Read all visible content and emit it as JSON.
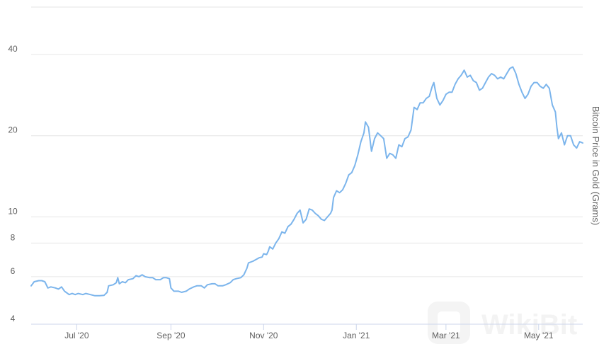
{
  "chart_data": {
    "type": "line",
    "title": "",
    "xlabel": "",
    "ylabel": "Bitcoin Price in Gold (Grams)",
    "y_scale": "log",
    "ylim": [
      4,
      60
    ],
    "y_ticks": [
      {
        "value": 4,
        "label": "4"
      },
      {
        "value": 6,
        "label": "6"
      },
      {
        "value": 8,
        "label": "8"
      },
      {
        "value": 10,
        "label": "10"
      },
      {
        "value": 20,
        "label": "20"
      },
      {
        "value": 40,
        "label": "40"
      }
    ],
    "x_ticks": [
      {
        "date": "2020-07-01",
        "label": "Jul '20"
      },
      {
        "date": "2020-09-01",
        "label": "Sep '20"
      },
      {
        "date": "2020-11-01",
        "label": "Nov '20"
      },
      {
        "date": "2021-01-01",
        "label": "Jan '21"
      },
      {
        "date": "2021-03-01",
        "label": "Mar '21"
      },
      {
        "date": "2021-05-01",
        "label": "May '21"
      }
    ],
    "xlim": [
      "2020-06-01",
      "2021-05-30"
    ],
    "grid": true,
    "legend": "none",
    "line_color": "#7cb5ec",
    "series": [
      {
        "points": [
          [
            "2020-06-01",
            5.55
          ],
          [
            "2020-06-03",
            5.75
          ],
          [
            "2020-06-06",
            5.8
          ],
          [
            "2020-06-08",
            5.8
          ],
          [
            "2020-06-10",
            5.75
          ],
          [
            "2020-06-12",
            5.45
          ],
          [
            "2020-06-14",
            5.5
          ],
          [
            "2020-06-17",
            5.45
          ],
          [
            "2020-06-19",
            5.4
          ],
          [
            "2020-06-21",
            5.5
          ],
          [
            "2020-06-23",
            5.3
          ],
          [
            "2020-06-26",
            5.15
          ],
          [
            "2020-06-28",
            5.2
          ],
          [
            "2020-06-30",
            5.15
          ],
          [
            "2020-07-02",
            5.2
          ],
          [
            "2020-07-05",
            5.15
          ],
          [
            "2020-07-07",
            5.2
          ],
          [
            "2020-07-10",
            5.15
          ],
          [
            "2020-07-13",
            5.1
          ],
          [
            "2020-07-16",
            5.1
          ],
          [
            "2020-07-19",
            5.12
          ],
          [
            "2020-07-21",
            5.25
          ],
          [
            "2020-07-22",
            5.55
          ],
          [
            "2020-07-25",
            5.6
          ],
          [
            "2020-07-27",
            5.7
          ],
          [
            "2020-07-28",
            5.95
          ],
          [
            "2020-07-29",
            5.65
          ],
          [
            "2020-07-31",
            5.75
          ],
          [
            "2020-08-02",
            5.7
          ],
          [
            "2020-08-04",
            5.85
          ],
          [
            "2020-08-07",
            5.9
          ],
          [
            "2020-08-09",
            6.05
          ],
          [
            "2020-08-11",
            6.0
          ],
          [
            "2020-08-13",
            6.1
          ],
          [
            "2020-08-15",
            6.0
          ],
          [
            "2020-08-18",
            5.95
          ],
          [
            "2020-08-20",
            5.95
          ],
          [
            "2020-08-22",
            5.85
          ],
          [
            "2020-08-25",
            5.85
          ],
          [
            "2020-08-27",
            5.95
          ],
          [
            "2020-08-29",
            5.95
          ],
          [
            "2020-08-31",
            5.9
          ],
          [
            "2020-09-01",
            5.45
          ],
          [
            "2020-09-03",
            5.3
          ],
          [
            "2020-09-06",
            5.3
          ],
          [
            "2020-09-08",
            5.25
          ],
          [
            "2020-09-11",
            5.3
          ],
          [
            "2020-09-13",
            5.4
          ],
          [
            "2020-09-16",
            5.5
          ],
          [
            "2020-09-18",
            5.55
          ],
          [
            "2020-09-21",
            5.55
          ],
          [
            "2020-09-23",
            5.45
          ],
          [
            "2020-09-25",
            5.6
          ],
          [
            "2020-09-28",
            5.65
          ],
          [
            "2020-09-30",
            5.65
          ],
          [
            "2020-10-02",
            5.55
          ],
          [
            "2020-10-05",
            5.55
          ],
          [
            "2020-10-07",
            5.6
          ],
          [
            "2020-10-10",
            5.7
          ],
          [
            "2020-10-12",
            5.85
          ],
          [
            "2020-10-14",
            5.9
          ],
          [
            "2020-10-17",
            5.95
          ],
          [
            "2020-10-19",
            6.1
          ],
          [
            "2020-10-21",
            6.45
          ],
          [
            "2020-10-22",
            6.75
          ],
          [
            "2020-10-25",
            6.85
          ],
          [
            "2020-10-27",
            6.95
          ],
          [
            "2020-10-29",
            7.05
          ],
          [
            "2020-10-31",
            7.1
          ],
          [
            "2020-11-01",
            7.3
          ],
          [
            "2020-11-03",
            7.25
          ],
          [
            "2020-11-04",
            7.45
          ],
          [
            "2020-11-05",
            7.75
          ],
          [
            "2020-11-07",
            7.6
          ],
          [
            "2020-11-09",
            8.0
          ],
          [
            "2020-11-11",
            8.3
          ],
          [
            "2020-11-13",
            8.8
          ],
          [
            "2020-11-15",
            8.7
          ],
          [
            "2020-11-17",
            9.2
          ],
          [
            "2020-11-19",
            9.4
          ],
          [
            "2020-11-21",
            9.8
          ],
          [
            "2020-11-23",
            10.3
          ],
          [
            "2020-11-25",
            10.6
          ],
          [
            "2020-11-27",
            9.5
          ],
          [
            "2020-11-29",
            9.8
          ],
          [
            "2020-12-01",
            10.7
          ],
          [
            "2020-12-03",
            10.6
          ],
          [
            "2020-12-05",
            10.3
          ],
          [
            "2020-12-07",
            10.1
          ],
          [
            "2020-12-09",
            9.8
          ],
          [
            "2020-12-11",
            9.7
          ],
          [
            "2020-12-13",
            10.0
          ],
          [
            "2020-12-15",
            10.3
          ],
          [
            "2020-12-16",
            10.6
          ],
          [
            "2020-12-17",
            11.8
          ],
          [
            "2020-12-19",
            12.5
          ],
          [
            "2020-12-21",
            12.3
          ],
          [
            "2020-12-23",
            12.6
          ],
          [
            "2020-12-25",
            13.3
          ],
          [
            "2020-12-27",
            14.3
          ],
          [
            "2020-12-29",
            14.6
          ],
          [
            "2020-12-31",
            15.5
          ],
          [
            "2021-01-02",
            17.0
          ],
          [
            "2021-01-04",
            19.0
          ],
          [
            "2021-01-06",
            20.5
          ],
          [
            "2021-01-07",
            22.5
          ],
          [
            "2021-01-09",
            21.5
          ],
          [
            "2021-01-11",
            17.5
          ],
          [
            "2021-01-13",
            19.5
          ],
          [
            "2021-01-15",
            20.5
          ],
          [
            "2021-01-17",
            20.0
          ],
          [
            "2021-01-19",
            19.5
          ],
          [
            "2021-01-21",
            16.5
          ],
          [
            "2021-01-23",
            17.2
          ],
          [
            "2021-01-25",
            17.0
          ],
          [
            "2021-01-27",
            16.5
          ],
          [
            "2021-01-29",
            18.5
          ],
          [
            "2021-01-31",
            18.2
          ],
          [
            "2021-02-02",
            19.5
          ],
          [
            "2021-02-04",
            19.8
          ],
          [
            "2021-02-06",
            21.0
          ],
          [
            "2021-02-08",
            25.5
          ],
          [
            "2021-02-10",
            25.0
          ],
          [
            "2021-02-12",
            26.5
          ],
          [
            "2021-02-14",
            26.5
          ],
          [
            "2021-02-16",
            27.5
          ],
          [
            "2021-02-18",
            28.0
          ],
          [
            "2021-02-20",
            30.5
          ],
          [
            "2021-02-21",
            31.5
          ],
          [
            "2021-02-23",
            27.5
          ],
          [
            "2021-02-25",
            26.0
          ],
          [
            "2021-02-27",
            27.0
          ],
          [
            "2021-03-01",
            28.5
          ],
          [
            "2021-03-03",
            29.0
          ],
          [
            "2021-03-05",
            29.0
          ],
          [
            "2021-03-07",
            31.0
          ],
          [
            "2021-03-09",
            32.5
          ],
          [
            "2021-03-11",
            33.5
          ],
          [
            "2021-03-13",
            35.0
          ],
          [
            "2021-03-15",
            33.0
          ],
          [
            "2021-03-17",
            33.5
          ],
          [
            "2021-03-19",
            32.0
          ],
          [
            "2021-03-21",
            31.5
          ],
          [
            "2021-03-23",
            29.5
          ],
          [
            "2021-03-25",
            30.0
          ],
          [
            "2021-03-27",
            31.5
          ],
          [
            "2021-03-29",
            33.0
          ],
          [
            "2021-03-31",
            34.0
          ],
          [
            "2021-04-02",
            33.5
          ],
          [
            "2021-04-04",
            32.5
          ],
          [
            "2021-04-06",
            33.0
          ],
          [
            "2021-04-08",
            32.5
          ],
          [
            "2021-04-10",
            34.0
          ],
          [
            "2021-04-12",
            35.5
          ],
          [
            "2021-04-14",
            36.0
          ],
          [
            "2021-04-16",
            34.0
          ],
          [
            "2021-04-18",
            31.0
          ],
          [
            "2021-04-20",
            29.0
          ],
          [
            "2021-04-22",
            27.5
          ],
          [
            "2021-04-24",
            28.5
          ],
          [
            "2021-04-26",
            30.5
          ],
          [
            "2021-04-28",
            31.5
          ],
          [
            "2021-04-30",
            31.5
          ],
          [
            "2021-05-02",
            30.5
          ],
          [
            "2021-05-04",
            30.0
          ],
          [
            "2021-05-06",
            31.0
          ],
          [
            "2021-05-08",
            30.0
          ],
          [
            "2021-05-10",
            26.0
          ],
          [
            "2021-05-12",
            24.5
          ],
          [
            "2021-05-13",
            21.5
          ],
          [
            "2021-05-14",
            19.5
          ],
          [
            "2021-05-16",
            20.5
          ],
          [
            "2021-05-18",
            18.5
          ],
          [
            "2021-05-20",
            20.0
          ],
          [
            "2021-05-22",
            20.0
          ],
          [
            "2021-05-24",
            18.5
          ],
          [
            "2021-05-26",
            18.0
          ],
          [
            "2021-05-28",
            19.0
          ],
          [
            "2021-05-30",
            18.8
          ]
        ]
      }
    ]
  }
}
